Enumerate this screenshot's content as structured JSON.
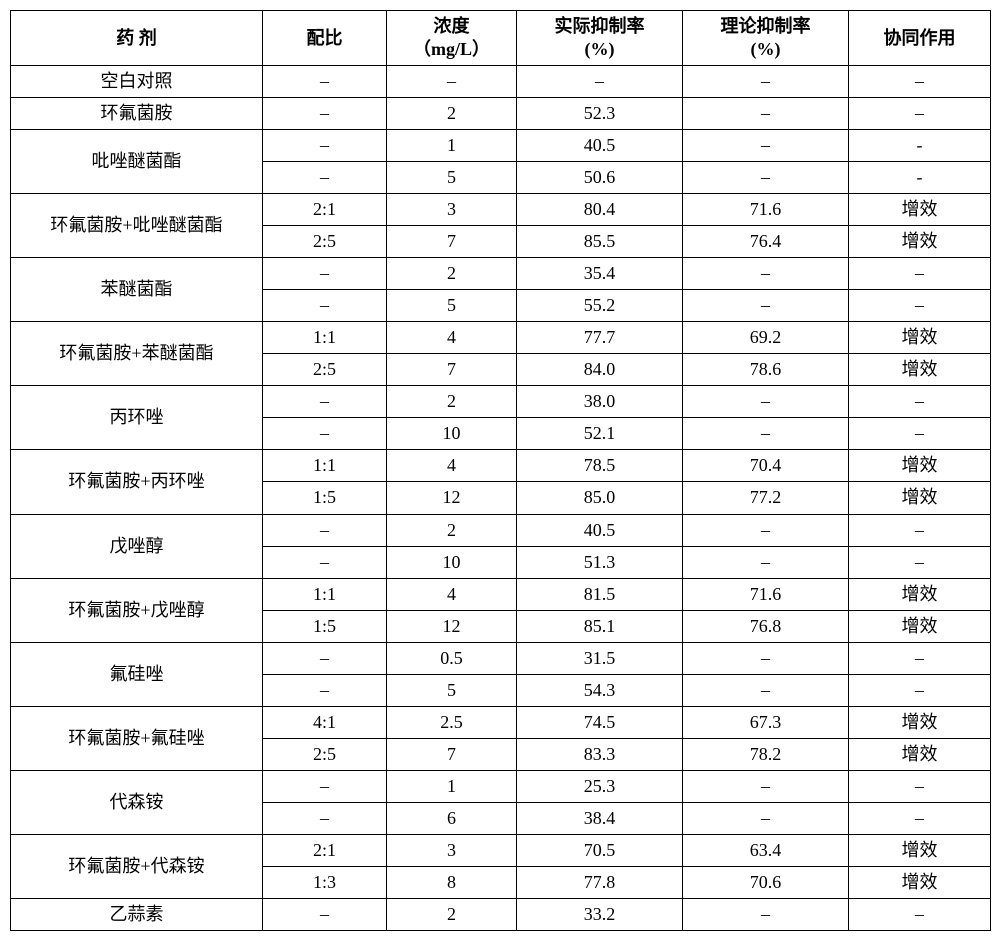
{
  "headers": {
    "agent": "药 剂",
    "ratio": "配比",
    "conc_l1": "浓度",
    "conc_l2": "（mg/L）",
    "actual_l1": "实际抑制率",
    "actual_l2": "(%)",
    "theo_l1": "理论抑制率",
    "theo_l2": "(%)",
    "syn": "协同作用"
  },
  "rows": [
    {
      "agent": "空白对照",
      "span": 1,
      "ratio": "–",
      "conc": "–",
      "actual": "–",
      "theo": "–",
      "syn": "–"
    },
    {
      "agent": "环氟菌胺",
      "span": 1,
      "ratio": "–",
      "conc": "2",
      "actual": "52.3",
      "theo": "–",
      "syn": "–"
    },
    {
      "agent": "吡唑醚菌酯",
      "span": 2,
      "ratio": "–",
      "conc": "1",
      "actual": "40.5",
      "theo": "–",
      "syn": "-"
    },
    {
      "ratio": "–",
      "conc": "5",
      "actual": "50.6",
      "theo": "–",
      "syn": "-"
    },
    {
      "agent": "环氟菌胺+吡唑醚菌酯",
      "span": 2,
      "ratio": "2:1",
      "conc": "3",
      "actual": "80.4",
      "theo": "71.6",
      "syn": "增效"
    },
    {
      "ratio": "2:5",
      "conc": "7",
      "actual": "85.5",
      "theo": "76.4",
      "syn": "增效"
    },
    {
      "agent": "苯醚菌酯",
      "span": 2,
      "ratio": "–",
      "conc": "2",
      "actual": "35.4",
      "theo": "–",
      "syn": "–"
    },
    {
      "ratio": "–",
      "conc": "5",
      "actual": "55.2",
      "theo": "–",
      "syn": "–"
    },
    {
      "agent": "环氟菌胺+苯醚菌酯",
      "span": 2,
      "ratio": "1:1",
      "conc": "4",
      "actual": "77.7",
      "theo": "69.2",
      "syn": "增效"
    },
    {
      "ratio": "2:5",
      "conc": "7",
      "actual": "84.0",
      "theo": "78.6",
      "syn": "增效"
    },
    {
      "agent": "丙环唑",
      "span": 2,
      "ratio": "–",
      "conc": "2",
      "actual": "38.0",
      "theo": "–",
      "syn": "–"
    },
    {
      "ratio": "–",
      "conc": "10",
      "actual": "52.1",
      "theo": "–",
      "syn": "–"
    },
    {
      "agent": "环氟菌胺+丙环唑",
      "span": 2,
      "ratio": "1:1",
      "conc": "4",
      "actual": "78.5",
      "theo": "70.4",
      "syn": "增效"
    },
    {
      "ratio": "1:5",
      "conc": "12",
      "actual": "85.0",
      "theo": "77.2",
      "syn": "增效"
    },
    {
      "agent": "戊唑醇",
      "span": 2,
      "ratio": "–",
      "conc": "2",
      "actual": "40.5",
      "theo": "–",
      "syn": "–"
    },
    {
      "ratio": "–",
      "conc": "10",
      "actual": "51.3",
      "theo": "–",
      "syn": "–"
    },
    {
      "agent": "环氟菌胺+戊唑醇",
      "span": 2,
      "ratio": "1:1",
      "conc": "4",
      "actual": "81.5",
      "theo": "71.6",
      "syn": "增效"
    },
    {
      "ratio": "1:5",
      "conc": "12",
      "actual": "85.1",
      "theo": "76.8",
      "syn": "增效"
    },
    {
      "agent": "氟硅唑",
      "span": 2,
      "ratio": "–",
      "conc": "0.5",
      "actual": "31.5",
      "theo": "–",
      "syn": "–"
    },
    {
      "ratio": "–",
      "conc": "5",
      "actual": "54.3",
      "theo": "–",
      "syn": "–"
    },
    {
      "agent": "环氟菌胺+氟硅唑",
      "span": 2,
      "ratio": "4:1",
      "conc": "2.5",
      "actual": "74.5",
      "theo": "67.3",
      "syn": "增效"
    },
    {
      "ratio": "2:5",
      "conc": "7",
      "actual": "83.3",
      "theo": "78.2",
      "syn": "增效"
    },
    {
      "agent": "代森铵",
      "span": 2,
      "ratio": "–",
      "conc": "1",
      "actual": "25.3",
      "theo": "–",
      "syn": "–"
    },
    {
      "ratio": "–",
      "conc": "6",
      "actual": "38.4",
      "theo": "–",
      "syn": "–"
    },
    {
      "agent": "环氟菌胺+代森铵",
      "span": 2,
      "ratio": "2:1",
      "conc": "3",
      "actual": "70.5",
      "theo": "63.4",
      "syn": "增效"
    },
    {
      "ratio": "1:3",
      "conc": "8",
      "actual": "77.8",
      "theo": "70.6",
      "syn": "增效"
    },
    {
      "agent": "乙蒜素",
      "span": 1,
      "ratio": "–",
      "conc": "2",
      "actual": "33.2",
      "theo": "–",
      "syn": "–"
    }
  ]
}
